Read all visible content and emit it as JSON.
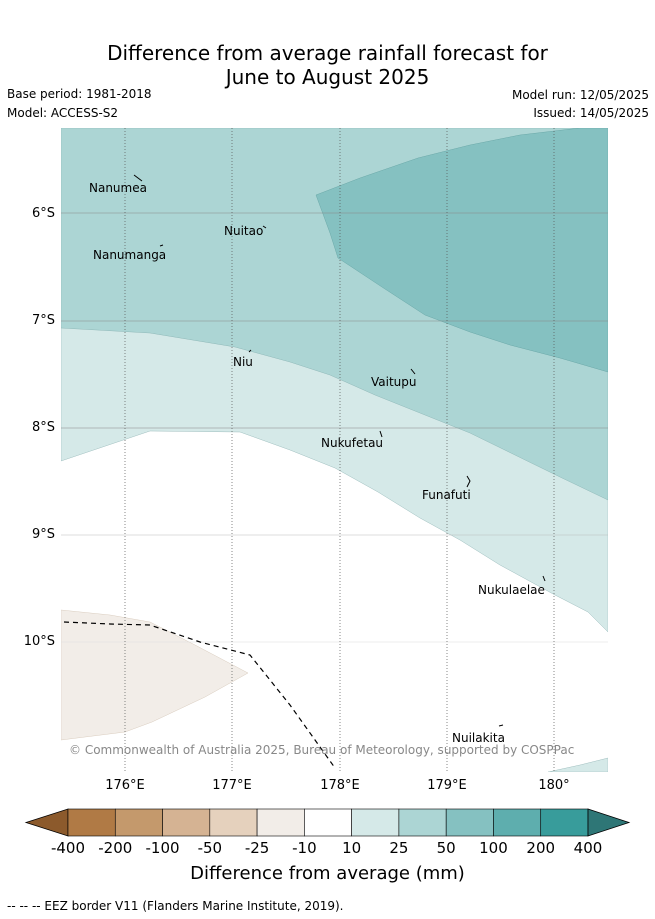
{
  "header": {
    "title_line1": "Difference from average rainfall forecast for",
    "title_line2": "June to August 2025",
    "base_period": "Base period: 1981-2018",
    "model": "Model: ACCESS-S2",
    "model_run": "Model run: 12/05/2025",
    "issued": "Issued: 14/05/2025"
  },
  "map": {
    "lat_labels": [
      "6°S",
      "7°S",
      "8°S",
      "9°S",
      "10°S"
    ],
    "lon_labels": [
      "176°E",
      "177°E",
      "178°E",
      "179°E",
      "180°"
    ],
    "places": [
      "Nanumea",
      "Nuitao",
      "Nanumanga",
      "Niu",
      "Vaitupu",
      "Nukufetau",
      "Funafuti",
      "Nukulaelae",
      "Nuilakita"
    ],
    "copyright": "© Commonwealth of Australia 2025, Bureau of Meteorology, supported by COSPPac"
  },
  "colorbar": {
    "labels": [
      "-400",
      "-200",
      "-100",
      "-50",
      "-25",
      "-10",
      "10",
      "25",
      "50",
      "100",
      "200",
      "400"
    ],
    "colors": [
      "#8c5a2c",
      "#b07a45",
      "#c4996c",
      "#d5b393",
      "#e5d1bd",
      "#f2ede8",
      "#ffffff",
      "#d5e9e8",
      "#acd5d4",
      "#85c1c1",
      "#5eaeae",
      "#389c9b",
      "#2e7676"
    ],
    "title": "Difference from average (mm)"
  },
  "footnote": "--  --  -- EEZ border V11 (Flanders Marine Institute, 2019)."
}
